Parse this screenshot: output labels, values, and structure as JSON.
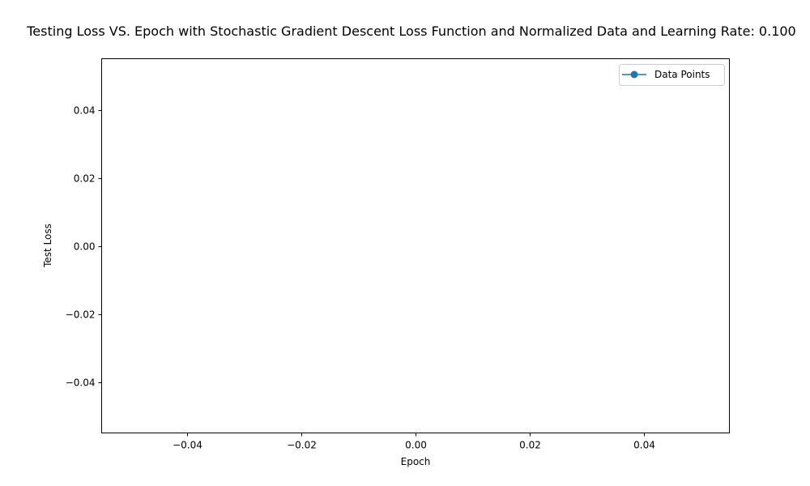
{
  "chart_data": {
    "type": "line",
    "title": "Testing Loss VS. Epoch with Stochastic Gradient Descent Loss Function and Normalized Data and Learning Rate: 0.100",
    "xlabel": "Epoch",
    "ylabel": "Test Loss",
    "xlim": [
      -0.055,
      0.055
    ],
    "ylim": [
      -0.055,
      0.055
    ],
    "x_ticks": [
      -0.04,
      -0.02,
      0.0,
      0.02,
      0.04
    ],
    "x_tick_labels": [
      "−0.04",
      "−0.02",
      "0.00",
      "0.02",
      "0.04"
    ],
    "y_ticks": [
      -0.04,
      -0.02,
      0.0,
      0.02,
      0.04
    ],
    "y_tick_labels": [
      "−0.04",
      "−0.02",
      "0.00",
      "0.02",
      "0.04"
    ],
    "grid": false,
    "legend_position": "upper right",
    "series": [
      {
        "name": "Data Points",
        "color": "#1f77b4",
        "marker": "circle",
        "x": [],
        "y": []
      }
    ]
  }
}
